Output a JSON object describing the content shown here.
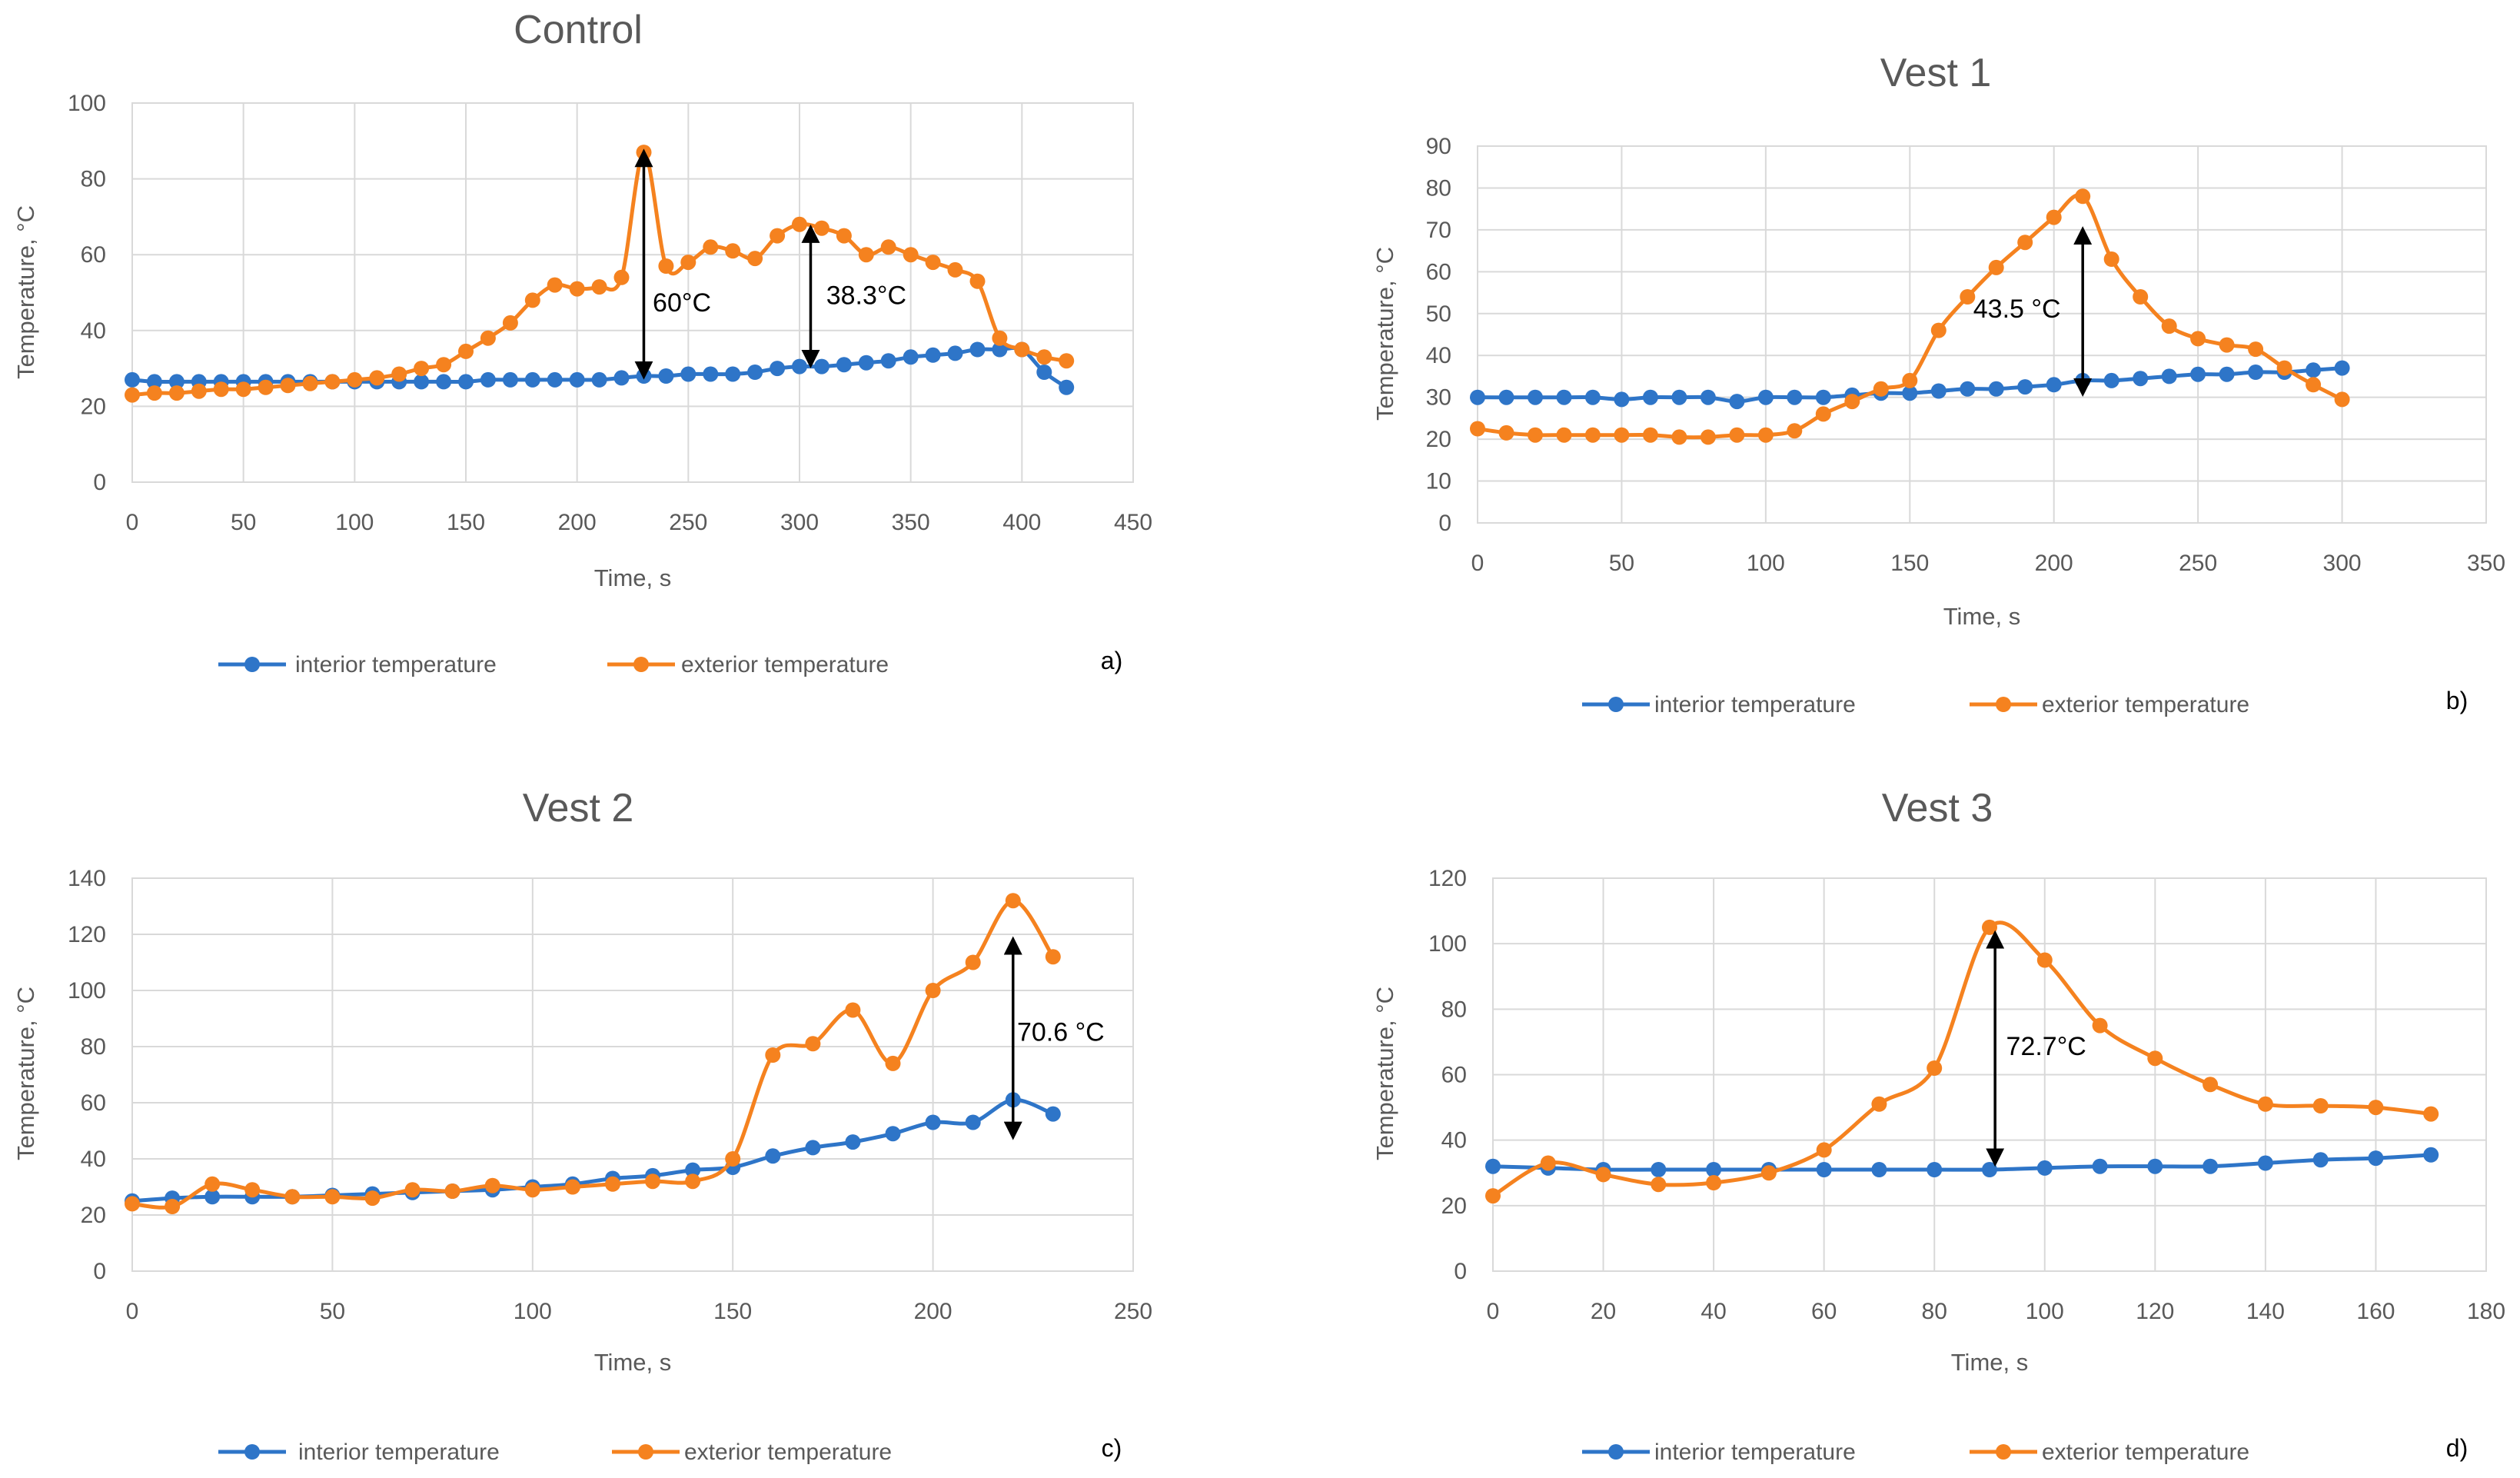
{
  "colors": {
    "interior": "#2E75C8",
    "exterior": "#F5821F",
    "grid": "#D9D9D9",
    "text": "#595959",
    "annotation": "#000000"
  },
  "chart_data": [
    {
      "type": "line",
      "panel_label": "a)",
      "title": "Control",
      "xlabel": "Time, s",
      "ylabel": "Temperature, °C",
      "xlim": [
        0,
        450
      ],
      "xstep": 50,
      "ylim": [
        0,
        100
      ],
      "ystep": 20,
      "x_ticks": [
        "0",
        "50",
        "100",
        "150",
        "200",
        "250",
        "300",
        "350",
        "400",
        "450"
      ],
      "y_ticks": [
        "0",
        "20",
        "40",
        "60",
        "80",
        "100"
      ],
      "legend": [
        "interior temperature",
        "exterior temperature"
      ],
      "series": [
        {
          "name": "interior temperature",
          "color": "interior",
          "x": [
            0,
            10,
            20,
            30,
            40,
            50,
            60,
            70,
            80,
            90,
            100,
            110,
            120,
            130,
            140,
            150,
            160,
            170,
            180,
            190,
            200,
            210,
            220,
            230,
            240,
            250,
            260,
            270,
            280,
            290,
            300,
            310,
            320,
            330,
            340,
            350,
            360,
            370,
            380,
            390,
            400,
            410,
            420
          ],
          "y": [
            27,
            26.5,
            26.5,
            26.5,
            26.5,
            26.5,
            26.5,
            26.5,
            26.5,
            26.5,
            26.5,
            26.5,
            26.5,
            26.5,
            26.5,
            26.5,
            27,
            27,
            27,
            27,
            27,
            27,
            27.5,
            28,
            28,
            28.5,
            28.5,
            28.5,
            29,
            30,
            30.5,
            30.5,
            31,
            31.5,
            32,
            33,
            33.5,
            34,
            35,
            35,
            35,
            29,
            25
          ]
        },
        {
          "name": "exterior temperature",
          "color": "exterior",
          "x": [
            0,
            10,
            20,
            30,
            40,
            50,
            60,
            70,
            80,
            90,
            100,
            110,
            120,
            130,
            140,
            150,
            160,
            170,
            180,
            190,
            200,
            210,
            220,
            230,
            240,
            250,
            260,
            270,
            280,
            290,
            300,
            310,
            320,
            330,
            340,
            350,
            360,
            370,
            380,
            390,
            400,
            410,
            420
          ],
          "y": [
            23,
            23.5,
            23.5,
            24,
            24.5,
            24.5,
            25,
            25.5,
            26,
            26.5,
            27,
            27.5,
            28.5,
            30,
            31,
            34.5,
            38,
            42,
            48,
            52,
            51,
            51.5,
            54,
            87,
            57,
            58,
            62,
            61,
            59,
            65,
            68,
            67,
            65,
            60,
            62,
            60,
            58,
            56,
            53,
            38,
            35,
            33,
            32
          ]
        }
      ],
      "annotations": [
        {
          "x": 230,
          "y_from": 28,
          "y_to": 87,
          "label": "60°C",
          "label_x": 234,
          "label_y": 45
        },
        {
          "x": 305,
          "y_from": 31,
          "y_to": 67,
          "label": "38.3°C",
          "label_x": 312,
          "label_y": 47
        }
      ]
    },
    {
      "type": "line",
      "panel_label": "b)",
      "title": "Vest 1",
      "xlabel": "Time, s",
      "ylabel": "Temperature, °C",
      "xlim": [
        0,
        350
      ],
      "xstep": 50,
      "ylim": [
        0,
        90
      ],
      "ystep": 10,
      "x_ticks": [
        "0",
        "50",
        "100",
        "150",
        "200",
        "250",
        "300",
        "350"
      ],
      "y_ticks": [
        "0",
        "10",
        "20",
        "30",
        "40",
        "50",
        "60",
        "70",
        "80",
        "90"
      ],
      "legend": [
        "interior temperature",
        "exterior temperature"
      ],
      "series": [
        {
          "name": "interior temperature",
          "color": "interior",
          "x": [
            0,
            10,
            20,
            30,
            40,
            50,
            60,
            70,
            80,
            90,
            100,
            110,
            120,
            130,
            140,
            150,
            160,
            170,
            180,
            190,
            200,
            210,
            220,
            230,
            240,
            250,
            260,
            270,
            280,
            290,
            300
          ],
          "y": [
            30,
            30,
            30,
            30,
            30,
            29.5,
            30,
            30,
            30,
            29,
            30,
            30,
            30,
            30.5,
            31,
            31,
            31.5,
            32,
            32,
            32.5,
            33,
            34,
            34,
            34.5,
            35,
            35.5,
            35.5,
            36,
            36,
            36.5,
            37
          ]
        },
        {
          "name": "exterior temperature",
          "color": "exterior",
          "x": [
            0,
            10,
            20,
            30,
            40,
            50,
            60,
            70,
            80,
            90,
            100,
            110,
            120,
            130,
            140,
            150,
            160,
            170,
            180,
            190,
            200,
            210,
            220,
            230,
            240,
            250,
            260,
            270,
            280,
            290,
            300
          ],
          "y": [
            22.5,
            21.5,
            21,
            21,
            21,
            21,
            21,
            20.5,
            20.5,
            21,
            21,
            22,
            26,
            29,
            32,
            34,
            46,
            54,
            61,
            67,
            73,
            78,
            63,
            54,
            47,
            44,
            42.5,
            41.5,
            37,
            33,
            29.5
          ]
        }
      ],
      "annotations": [
        {
          "x": 210,
          "y_from": 31,
          "y_to": 70,
          "label": "43.5 °C",
          "label_x": 172,
          "label_y": 49
        }
      ]
    },
    {
      "type": "line",
      "panel_label": "c)",
      "title": "Vest 2",
      "xlabel": "Time, s",
      "ylabel": "Temperature, °C",
      "xlim": [
        0,
        250
      ],
      "xstep": 50,
      "ylim": [
        0,
        140
      ],
      "ystep": 20,
      "x_ticks": [
        "0",
        "50",
        "100",
        "150",
        "200",
        "250"
      ],
      "y_ticks": [
        "0",
        "20",
        "40",
        "60",
        "80",
        "100",
        "120",
        "140"
      ],
      "legend": [
        "interior temperature",
        "exterior temperature"
      ],
      "series": [
        {
          "name": "interior temperature",
          "color": "interior",
          "x": [
            0,
            10,
            20,
            30,
            40,
            50,
            60,
            70,
            80,
            90,
            100,
            110,
            120,
            130,
            140,
            150,
            160,
            170,
            180,
            190,
            200,
            210,
            220,
            230
          ],
          "y": [
            25,
            26,
            26.5,
            26.5,
            26.5,
            27,
            27.5,
            28,
            28.5,
            29,
            30,
            31,
            33,
            34,
            36,
            37,
            41,
            44,
            46,
            49,
            53,
            53,
            61,
            56
          ]
        },
        {
          "name": "exterior temperature",
          "color": "exterior",
          "x": [
            0,
            10,
            20,
            30,
            40,
            50,
            60,
            70,
            80,
            90,
            100,
            110,
            120,
            130,
            140,
            150,
            160,
            170,
            180,
            190,
            200,
            210,
            220,
            230
          ],
          "y": [
            24,
            23,
            31,
            29,
            26.5,
            26.5,
            26,
            29,
            28.5,
            30.5,
            29,
            30,
            31,
            32,
            32,
            40,
            77,
            81,
            93,
            74,
            100,
            110,
            132,
            112
          ]
        }
      ],
      "annotations": [
        {
          "x": 220,
          "y_from": 48,
          "y_to": 118,
          "label": "70.6 °C",
          "label_x": 221,
          "label_y": 82
        }
      ]
    },
    {
      "type": "line",
      "panel_label": "d)",
      "title": "Vest 3",
      "xlabel": "Time, s",
      "ylabel": "Temperature, °C",
      "xlim": [
        0,
        180
      ],
      "xstep": 20,
      "ylim": [
        0,
        120
      ],
      "ystep": 20,
      "x_ticks": [
        "0",
        "20",
        "40",
        "60",
        "80",
        "100",
        "120",
        "140",
        "160",
        "180"
      ],
      "y_ticks": [
        "0",
        "20",
        "40",
        "60",
        "80",
        "100",
        "120"
      ],
      "legend": [
        "interior temperature",
        "exterior temperature"
      ],
      "series": [
        {
          "name": "interior temperature",
          "color": "interior",
          "x": [
            0,
            10,
            20,
            30,
            40,
            50,
            60,
            70,
            80,
            90,
            100,
            110,
            120,
            130,
            140,
            150,
            160,
            170
          ],
          "y": [
            32,
            31.5,
            31,
            31,
            31,
            31,
            31,
            31,
            31,
            31,
            31.5,
            32,
            32,
            32,
            33,
            34,
            34.5,
            35.5
          ]
        },
        {
          "name": "exterior temperature",
          "color": "exterior",
          "x": [
            0,
            10,
            20,
            30,
            40,
            50,
            60,
            70,
            80,
            90,
            100,
            110,
            120,
            130,
            140,
            150,
            160,
            170
          ],
          "y": [
            23,
            33,
            29.5,
            26.5,
            27,
            30,
            37,
            51,
            62,
            105,
            95,
            75,
            65,
            57,
            51,
            50.5,
            50,
            48
          ]
        }
      ],
      "annotations": [
        {
          "x": 91,
          "y_from": 33,
          "y_to": 103,
          "label": "72.7°C",
          "label_x": 93,
          "label_y": 66
        }
      ]
    }
  ]
}
